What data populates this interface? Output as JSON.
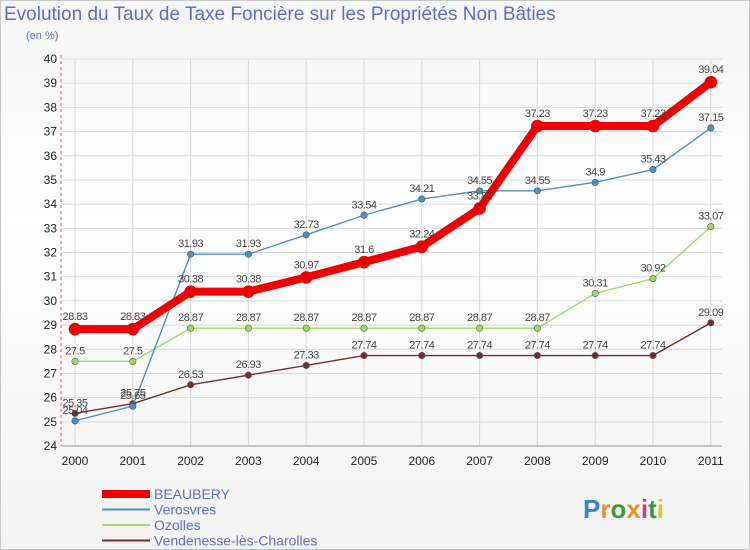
{
  "chart_data": {
    "type": "line",
    "title": "Evolution du Taux de Taxe Foncière sur les Propriétés Non Bâties",
    "subtitle": "(en %)",
    "x": [
      "2000",
      "2001",
      "2002",
      "2003",
      "2004",
      "2005",
      "2006",
      "2007",
      "2008",
      "2009",
      "2010",
      "2011"
    ],
    "ylim": [
      24,
      40
    ],
    "yticks": [
      "24",
      "25",
      "26",
      "27",
      "28",
      "29",
      "30",
      "31",
      "32",
      "33",
      "34",
      "35",
      "36",
      "37",
      "38",
      "39",
      "40"
    ],
    "grid": true,
    "legend_position": "bottom-left",
    "series": [
      {
        "name": "Vendenesse-lès-Charolles",
        "color": "#7a2a2a",
        "values": [
          25.35,
          25.75,
          26.53,
          26.93,
          27.33,
          27.74,
          27.74,
          27.74,
          27.74,
          27.74,
          27.74,
          29.09
        ],
        "labels": [
          "25.35",
          "25.75",
          "26.53",
          "26.93",
          "27.33",
          "27.74",
          "27.74",
          "27.74",
          "27.74",
          "27.74",
          "27.74",
          "29.09"
        ]
      },
      {
        "name": "Ozolles",
        "color": "#99dd66",
        "values": [
          27.5,
          27.5,
          28.87,
          28.87,
          28.87,
          28.87,
          28.87,
          28.87,
          28.87,
          30.31,
          30.92,
          33.07
        ],
        "labels": [
          "27.5",
          "27.5",
          "28.87",
          "28.87",
          "28.87",
          "28.87",
          "28.87",
          "28.87",
          "28.87",
          "30.31",
          "30.92",
          "33.07"
        ]
      },
      {
        "name": "Verosvres",
        "color": "#4a90c8",
        "values": [
          25.04,
          25.65,
          31.93,
          31.93,
          32.73,
          33.54,
          34.21,
          34.55,
          34.55,
          34.9,
          35.43,
          37.15
        ],
        "labels": [
          "25.04",
          "25.65",
          "31.93",
          "31.93",
          "32.73",
          "33.54",
          "34.21",
          "34.55",
          "34.55",
          "34.9",
          "35.43",
          "37.15"
        ]
      },
      {
        "name": "BEAUBERY",
        "color": "#ee0000",
        "values": [
          28.83,
          28.83,
          30.38,
          30.38,
          30.97,
          31.6,
          32.24,
          33.82,
          37.23,
          37.23,
          37.23,
          39.04
        ],
        "labels": [
          "28.83",
          "28.83",
          "30.38",
          "30.38",
          "30.97",
          "31.6",
          "32.24",
          "33.82",
          "37.23",
          "37.23",
          "37.23",
          "39.04"
        ]
      }
    ],
    "legend": [
      "BEAUBERY",
      "Verosvres",
      "Ozolles",
      "Vendenesse-lès-Charolles"
    ]
  },
  "logo": {
    "text": "Proxiti"
  },
  "colors": {
    "axis": "#e25555",
    "grid": "#d8d8d8",
    "title": "#5a6fc4"
  }
}
